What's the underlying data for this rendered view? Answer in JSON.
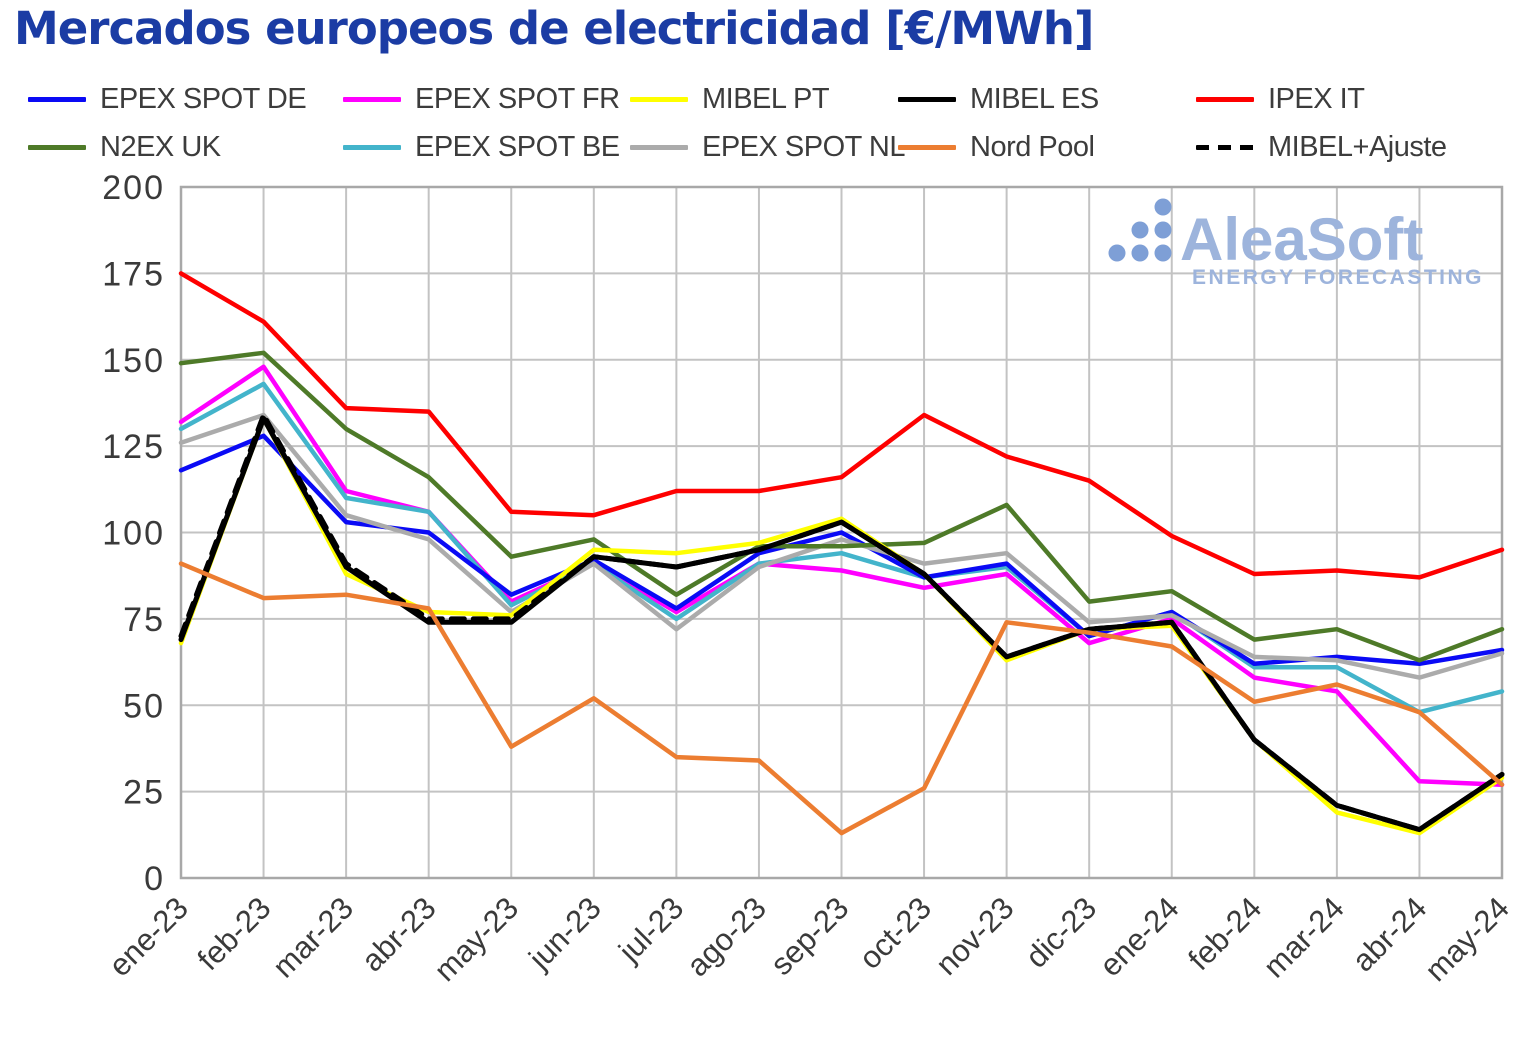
{
  "title": "Mercados europeos de electricidad [€/MWh]",
  "title_color": "#1B3CA4",
  "watermark": {
    "brand": "AleaSoft",
    "tagline": "ENERGY FORECASTING",
    "dot_color": "#7E9FD6",
    "text_color": "#9DB4DC"
  },
  "axes": {
    "y_ticks": [
      0,
      25,
      50,
      75,
      100,
      125,
      150,
      175,
      200
    ]
  },
  "chart_data": {
    "type": "line",
    "title": "Mercados europeos de electricidad [€/MWh]",
    "xlabel": "",
    "ylabel": "€/MWh",
    "ylim": [
      0,
      200
    ],
    "grid": true,
    "legend_position": "top",
    "x": [
      "ene-23",
      "feb-23",
      "mar-23",
      "abr-23",
      "may-23",
      "jun-23",
      "jul-23",
      "ago-23",
      "sep-23",
      "oct-23",
      "nov-23",
      "dic-23",
      "ene-24",
      "feb-24",
      "mar-24",
      "abr-24",
      "may-24"
    ],
    "series": [
      {
        "name": "EPEX SPOT DE",
        "color": "#0A0AF5",
        "dashed": false,
        "values": [
          118,
          128,
          103,
          100,
          82,
          92,
          78,
          94,
          100,
          87,
          91,
          70,
          77,
          62,
          64,
          62,
          66
        ]
      },
      {
        "name": "EPEX SPOT FR",
        "color": "#FF00FF",
        "dashed": false,
        "values": [
          132,
          148,
          112,
          106,
          80,
          91,
          77,
          91,
          89,
          84,
          88,
          68,
          75,
          58,
          54,
          28,
          27
        ]
      },
      {
        "name": "MIBEL PT",
        "color": "#FFFF00",
        "dashed": false,
        "values": [
          68,
          133,
          88,
          77,
          76,
          95,
          94,
          97,
          104,
          88,
          63,
          72,
          73,
          40,
          19,
          13,
          29
        ]
      },
      {
        "name": "MIBEL ES",
        "color": "#000000",
        "dashed": false,
        "values": [
          69,
          133,
          90,
          74,
          74,
          93,
          90,
          95,
          103,
          88,
          64,
          72,
          74,
          40,
          21,
          14,
          30
        ]
      },
      {
        "name": "IPEX IT",
        "color": "#FE0000",
        "dashed": false,
        "values": [
          175,
          161,
          136,
          135,
          106,
          105,
          112,
          112,
          116,
          134,
          122,
          115,
          99,
          88,
          89,
          87,
          95
        ]
      },
      {
        "name": "N2EX UK",
        "color": "#4E7A28",
        "dashed": false,
        "values": [
          149,
          152,
          130,
          116,
          93,
          98,
          82,
          96,
          96,
          97,
          108,
          80,
          83,
          69,
          72,
          63,
          72
        ]
      },
      {
        "name": "EPEX SPOT BE",
        "color": "#43B4CB",
        "dashed": false,
        "values": [
          130,
          143,
          110,
          106,
          79,
          91,
          75,
          91,
          94,
          87,
          90,
          70,
          77,
          61,
          61,
          48,
          54
        ]
      },
      {
        "name": "EPEX SPOT NL",
        "color": "#ABABAB",
        "dashed": false,
        "values": [
          126,
          134,
          105,
          98,
          77,
          91,
          72,
          90,
          98,
          91,
          94,
          74,
          76,
          64,
          63,
          58,
          65
        ]
      },
      {
        "name": "Nord Pool",
        "color": "#EC7D31",
        "dashed": false,
        "values": [
          91,
          81,
          82,
          78,
          38,
          52,
          35,
          34,
          13,
          26,
          74,
          71,
          67,
          51,
          56,
          48,
          27
        ]
      },
      {
        "name": "MIBEL+Ajuste",
        "color": "#000000",
        "dashed": true,
        "values": [
          70,
          134,
          91,
          75,
          75,
          93,
          90,
          95,
          103,
          88,
          64,
          72,
          74,
          40,
          21,
          14,
          30
        ]
      }
    ]
  }
}
